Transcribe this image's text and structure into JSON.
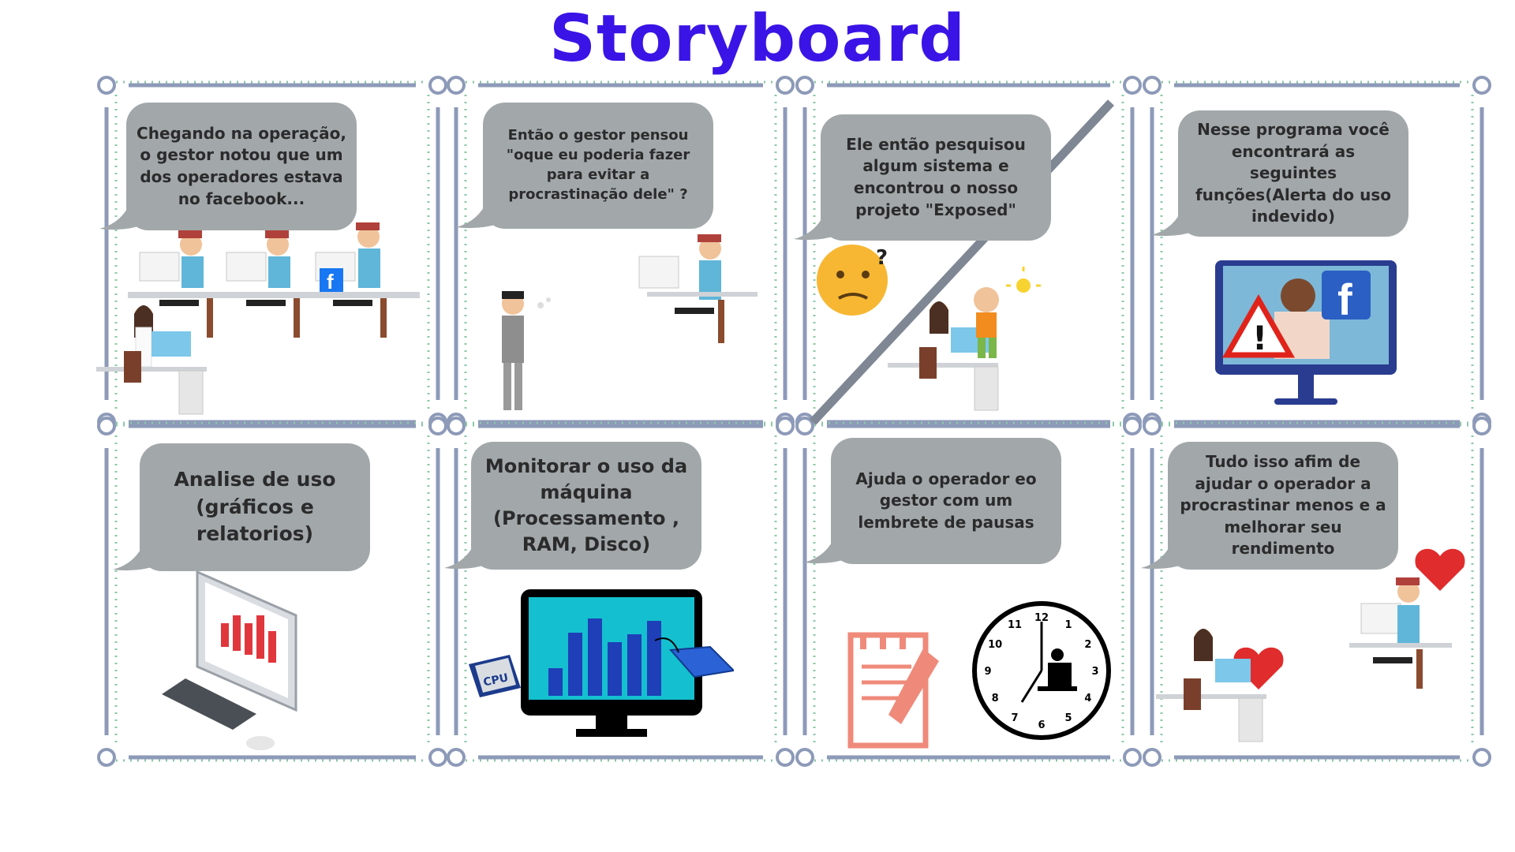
{
  "title": "Storyboard",
  "colors": {
    "title": "#3a14e6",
    "frame": "#8d9ab8",
    "frame_dots": "#8cc9a6",
    "bubble": "#a2a8aa",
    "bubble_text": "#2b2b2b",
    "heart": "#e02c2c",
    "notepad": "#ef8a7a"
  },
  "panels": [
    {
      "id": "p1",
      "bubble": "Chegando na operação, o gestor notou que um dos operadores estava no facebook...",
      "scene": "office-with-manager-and-operators",
      "icons": [
        "facebook-icon"
      ]
    },
    {
      "id": "p2",
      "bubble": "Então o gestor pensou \"oque eu poderia fazer para evitar a procrastinação dele\" ?",
      "scene": "thinking-manager-and-operator",
      "icons": []
    },
    {
      "id": "p3",
      "bubble": "Ele então pesquisou algum sistema e encontrou o nosso projeto \"Exposed\"",
      "scene": "manager-finds-idea",
      "icons": [
        "thinking-emoji-icon",
        "lightbulb-icon"
      ]
    },
    {
      "id": "p4",
      "bubble": "Nesse programa você encontrará as seguintes funções(Alerta do uso indevido)",
      "scene": "monitor-with-warning",
      "icons": [
        "warning-icon",
        "facebook-icon"
      ]
    },
    {
      "id": "p5",
      "bubble": "Analise de uso (gráficos e relatorios)",
      "scene": "computer-with-charts",
      "icons": [
        "bar-chart-icon"
      ]
    },
    {
      "id": "p6",
      "bubble": "Monitorar o uso da máquina (Processamento , RAM, Disco)",
      "scene": "monitor-cpu-disk",
      "icons": [
        "cpu-icon",
        "disk-icon"
      ],
      "cpu_label": "CPU"
    },
    {
      "id": "p7",
      "bubble": "Ajuda o operador eo gestor com um lembrete de pausas",
      "scene": "notepad-and-clock",
      "icons": [
        "notepad-icon",
        "clock-icon"
      ],
      "clock_numbers": [
        "12",
        "1",
        "2",
        "3",
        "4",
        "5",
        "6",
        "7",
        "8",
        "9",
        "10",
        "11"
      ]
    },
    {
      "id": "p8",
      "bubble": "Tudo isso afim de ajudar o operador a procrastinar menos e a melhorar seu rendimento",
      "scene": "happy-team",
      "icons": [
        "heart-icon",
        "heart-icon"
      ]
    }
  ]
}
